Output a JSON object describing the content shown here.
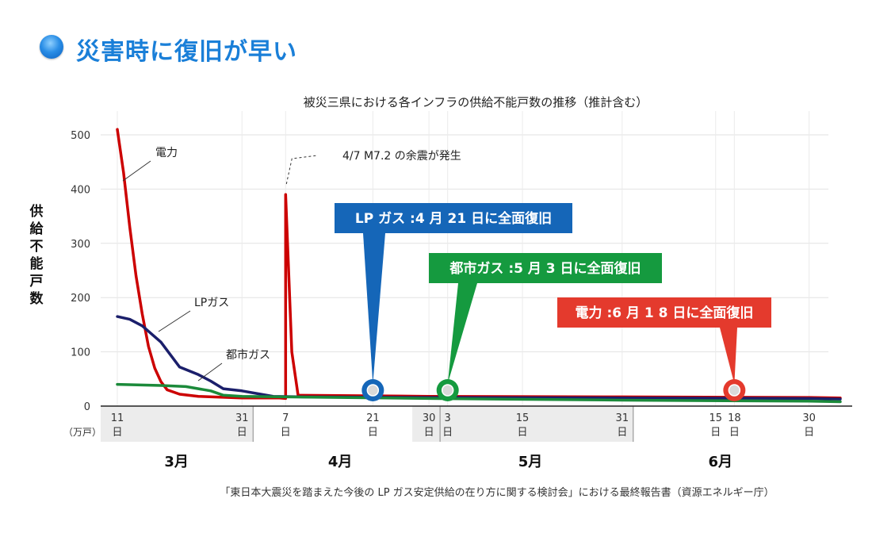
{
  "heading": "災害時に復旧が早い",
  "chart_data": {
    "type": "line",
    "title": "被災三県における各インフラの供給不能戸数の推移（推計含む）",
    "ylabel": "供給不能戸数",
    "y_unit": "（万戸）",
    "ylim": [
      0,
      500
    ],
    "yticks": [
      0,
      100,
      200,
      300,
      400,
      500
    ],
    "date_range": [
      "3/11",
      "7/5"
    ],
    "x_ticks": [
      {
        "date": "3/11",
        "label": "11",
        "unit": "日"
      },
      {
        "date": "3/31",
        "label": "31",
        "unit": "日"
      },
      {
        "date": "4/7",
        "label": "7",
        "unit": "日"
      },
      {
        "date": "4/21",
        "label": "21",
        "unit": "日"
      },
      {
        "date": "4/30",
        "label": "30",
        "unit": "日"
      },
      {
        "date": "5/3",
        "label": "3",
        "unit": "日"
      },
      {
        "date": "5/15",
        "label": "15",
        "unit": "日"
      },
      {
        "date": "5/31",
        "label": "31",
        "unit": "日"
      },
      {
        "date": "6/15",
        "label": "15",
        "unit": "日"
      },
      {
        "date": "6/18",
        "label": "18",
        "unit": "日"
      },
      {
        "date": "6/30",
        "label": "30",
        "unit": "日"
      }
    ],
    "months": [
      {
        "label": "3月",
        "start": "3/11",
        "end": "3/31"
      },
      {
        "label": "4月",
        "start": "3/31",
        "end": "4/30"
      },
      {
        "label": "5月",
        "start": "4/30",
        "end": "5/31"
      },
      {
        "label": "6月",
        "start": "5/31",
        "end": "6/30"
      }
    ],
    "series": [
      {
        "name": "電力",
        "color": "#cc0000",
        "points": [
          [
            "3/11",
            510
          ],
          [
            "3/12",
            430
          ],
          [
            "3/13",
            330
          ],
          [
            "3/14",
            240
          ],
          [
            "3/15",
            170
          ],
          [
            "3/16",
            110
          ],
          [
            "3/17",
            70
          ],
          [
            "3/18",
            45
          ],
          [
            "3/19",
            30
          ],
          [
            "3/21",
            22
          ],
          [
            "3/24",
            18
          ],
          [
            "3/31",
            15
          ],
          [
            "4/6",
            15
          ],
          [
            "4/7",
            14
          ],
          [
            "4/7",
            390
          ],
          [
            "4/8",
            100
          ],
          [
            "4/9",
            20
          ],
          [
            "4/30",
            18
          ],
          [
            "5/31",
            17
          ],
          [
            "6/30",
            16
          ],
          [
            "7/5",
            15
          ]
        ]
      },
      {
        "name": "LPガス",
        "color": "#1b1f6b",
        "points": [
          [
            "3/11",
            165
          ],
          [
            "3/13",
            160
          ],
          [
            "3/15",
            148
          ],
          [
            "3/18",
            118
          ],
          [
            "3/21",
            72
          ],
          [
            "3/24",
            58
          ],
          [
            "3/26",
            46
          ],
          [
            "3/28",
            32
          ],
          [
            "3/31",
            28
          ],
          [
            "4/3",
            22
          ],
          [
            "4/5",
            18
          ],
          [
            "4/10",
            17
          ],
          [
            "4/30",
            16
          ],
          [
            "5/31",
            15
          ],
          [
            "6/30",
            14
          ],
          [
            "7/5",
            13
          ]
        ]
      },
      {
        "name": "都市ガス",
        "color": "#1b8a3a",
        "points": [
          [
            "3/11",
            40
          ],
          [
            "3/18",
            38
          ],
          [
            "3/22",
            36
          ],
          [
            "3/26",
            28
          ],
          [
            "3/28",
            20
          ],
          [
            "3/31",
            18
          ],
          [
            "4/7",
            17
          ],
          [
            "4/30",
            14
          ],
          [
            "5/31",
            11
          ],
          [
            "6/30",
            9
          ],
          [
            "7/5",
            8
          ]
        ]
      }
    ],
    "annotations": [
      {
        "text": "4/7 M7.2 の余震が発生",
        "date": "4/7"
      },
      {
        "text": "LP ガス :4 月 21 日に全面復旧",
        "date": "4/21",
        "color": "#1566b8"
      },
      {
        "text": "都市ガス :5 月 3 日に全面復旧",
        "date": "5/3",
        "color": "#159a3f"
      },
      {
        "text": "電力 :6 月 1 8 日に全面復旧",
        "date": "6/18",
        "color": "#e43a2d"
      }
    ],
    "source": "「東日本大震災を踏まえた今後の LP ガス安定供給の在り方に関する検討会」における最終報告書（資源エネルギー庁）"
  }
}
